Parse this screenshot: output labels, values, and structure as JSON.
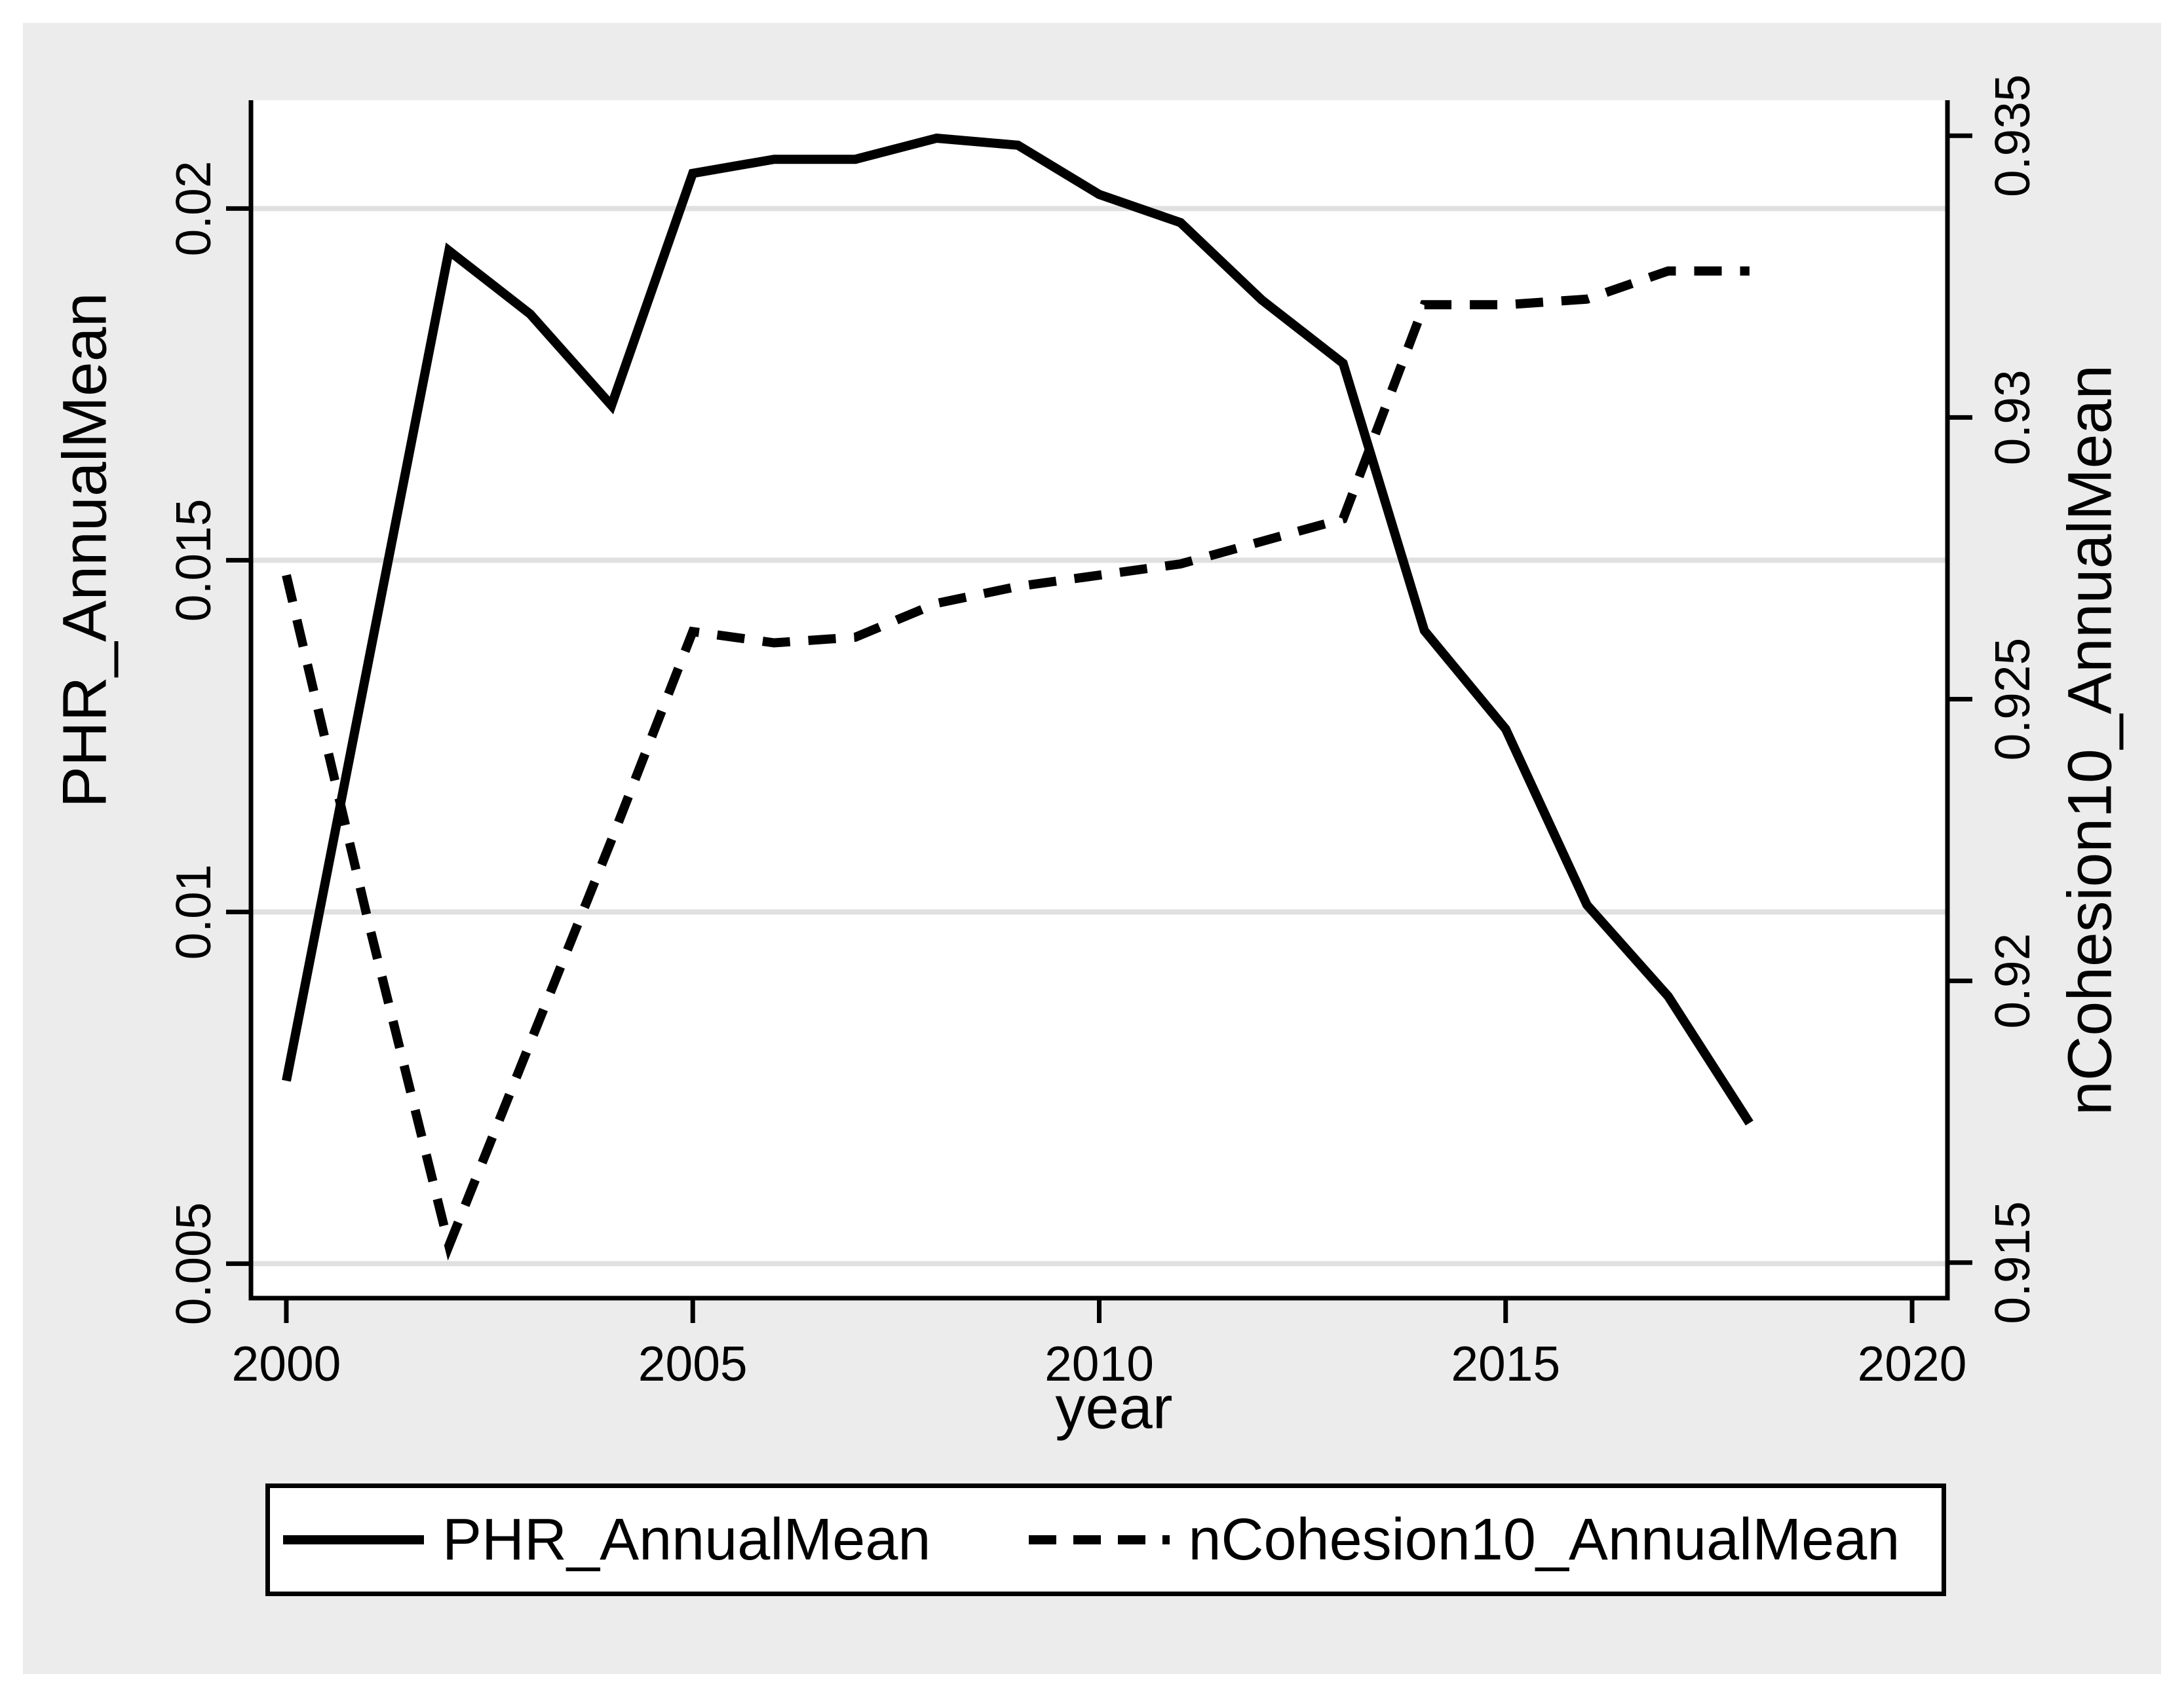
{
  "figure": {
    "x_axis_title": "year",
    "left_axis_title": "PHR_AnnualMean",
    "right_axis_title": "nCohesion10_AnnualMean"
  },
  "legend": {
    "items": [
      {
        "label": "PHR_AnnualMean",
        "style": "solid"
      },
      {
        "label": "nCohesion10_AnnualMean",
        "style": "dashed"
      }
    ]
  },
  "colors": {
    "background": "#ffffff",
    "graph_region": "#ececec",
    "plot_region": "#ffffff",
    "grid": "#e0e0e0",
    "line": "#000000",
    "text": "#000000"
  },
  "chart_data": {
    "type": "line",
    "title": "",
    "xlabel": "year",
    "x": [
      2000,
      2001,
      2002,
      2003,
      2004,
      2005,
      2006,
      2007,
      2008,
      2009,
      2010,
      2011,
      2012,
      2013,
      2014,
      2015,
      2016,
      2017,
      2018
    ],
    "series": [
      {
        "name": "PHR_AnnualMean",
        "axis": "left",
        "line_style": "solid",
        "values": [
          0.0076,
          0.0135,
          0.0194,
          0.0185,
          0.0172,
          0.0205,
          0.0207,
          0.0207,
          0.021,
          0.0209,
          0.0202,
          0.0198,
          0.0187,
          0.0178,
          0.014,
          0.0126,
          0.0101,
          0.0088,
          0.007
        ]
      },
      {
        "name": "nCohesion10_AnnualMean",
        "axis": "right",
        "line_style": "dashed",
        "values": [
          0.9272,
          0.9211,
          0.9153,
          0.9189,
          0.9225,
          0.9262,
          0.926,
          0.9261,
          0.9267,
          0.927,
          0.9272,
          0.9274,
          0.9278,
          0.9282,
          0.932,
          0.932,
          0.9321,
          0.9326,
          0.9326
        ]
      }
    ],
    "x_ticks": [
      2000,
      2005,
      2010,
      2015,
      2020
    ],
    "x_range": [
      1999.565,
      2020.435
    ],
    "left_axis": {
      "label": "PHR_AnnualMean",
      "ticks": [
        0.005,
        0.01,
        0.015,
        0.02
      ],
      "range": [
        0.00451,
        0.02154
      ]
    },
    "right_axis": {
      "label": "nCohesion10_AnnualMean",
      "ticks": [
        0.915,
        0.92,
        0.925,
        0.93,
        0.935
      ],
      "range": [
        0.91437,
        0.93563
      ]
    },
    "grid": "horizontal-at-left-ticks",
    "legend_position": "bottom"
  }
}
